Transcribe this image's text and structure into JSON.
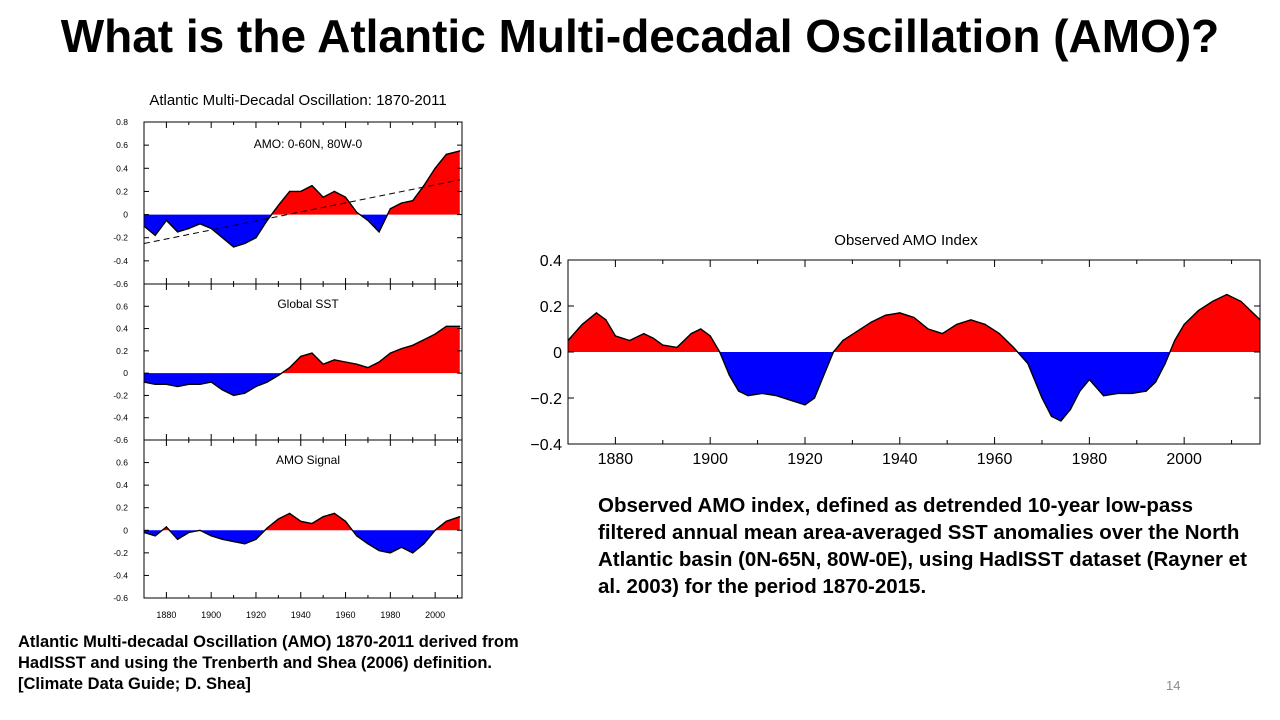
{
  "slide": {
    "title": "What is the Atlantic Multi-decadal Oscillation (AMO)?",
    "caption_left": "Atlantic Multi-decadal Oscillation (AMO) 1870-2011 derived from HadISST and using the Trenberth and Shea (2006) definition. [Climate Data Guide; D. Shea]",
    "caption_right": "Observed AMO index, defined as detrended 10-year low-pass filtered annual mean area-averaged SST anomalies over the North Atlantic basin (0N-65N, 80W-0E), using HadISST dataset (Rayner et al. 2003) for the period 1870-2015.",
    "page_number": "14"
  },
  "colors": {
    "positive": "#ff0000",
    "negative": "#0000ff",
    "line": "#000000"
  },
  "chart_data": [
    {
      "type": "area",
      "title": "Atlantic Multi-Decadal Oscillation: 1870-2011",
      "xlim": [
        1870,
        2012
      ],
      "x_ticks": [
        1880,
        1900,
        1920,
        1940,
        1960,
        1980,
        2000
      ],
      "panels": [
        {
          "label": "AMO: 0-60N, 80W-0",
          "ylim": [
            -0.6,
            0.8
          ],
          "y_ticks": [
            "0.8",
            "0.6",
            "0.4",
            "0.2",
            "0",
            "-0.2",
            "-0.4",
            "-0.6"
          ],
          "trend_line": {
            "x": [
              1870,
              2011
            ],
            "y": [
              -0.25,
              0.3
            ]
          },
          "x": [
            1870,
            1875,
            1880,
            1885,
            1890,
            1895,
            1900,
            1905,
            1910,
            1915,
            1920,
            1925,
            1930,
            1935,
            1940,
            1945,
            1950,
            1955,
            1960,
            1965,
            1970,
            1975,
            1980,
            1985,
            1990,
            1995,
            2000,
            2005,
            2011
          ],
          "values": [
            -0.1,
            -0.18,
            -0.05,
            -0.15,
            -0.12,
            -0.08,
            -0.12,
            -0.2,
            -0.28,
            -0.25,
            -0.2,
            -0.05,
            0.08,
            0.2,
            0.2,
            0.25,
            0.15,
            0.2,
            0.15,
            0.02,
            -0.05,
            -0.15,
            0.05,
            0.1,
            0.12,
            0.25,
            0.4,
            0.52,
            0.55
          ]
        },
        {
          "label": "Global SST",
          "ylim": [
            -0.6,
            0.8
          ],
          "y_ticks": [
            "0.6",
            "0.4",
            "0.2",
            "0",
            "-0.2",
            "-0.4",
            "-0.6"
          ],
          "x": [
            1870,
            1875,
            1880,
            1885,
            1890,
            1895,
            1900,
            1905,
            1910,
            1915,
            1920,
            1925,
            1930,
            1935,
            1940,
            1945,
            1950,
            1955,
            1960,
            1965,
            1970,
            1975,
            1980,
            1985,
            1990,
            1995,
            2000,
            2005,
            2011
          ],
          "values": [
            -0.08,
            -0.1,
            -0.1,
            -0.12,
            -0.1,
            -0.1,
            -0.08,
            -0.15,
            -0.2,
            -0.18,
            -0.12,
            -0.08,
            -0.02,
            0.05,
            0.15,
            0.18,
            0.08,
            0.12,
            0.1,
            0.08,
            0.05,
            0.1,
            0.18,
            0.22,
            0.25,
            0.3,
            0.35,
            0.42,
            0.42
          ]
        },
        {
          "label": "AMO Signal",
          "ylim": [
            -0.6,
            0.8
          ],
          "y_ticks": [
            "0.6",
            "0.4",
            "0.2",
            "0",
            "-0.2",
            "-0.4",
            "-0.6"
          ],
          "x_tick_labels": [
            "1880",
            "1900",
            "1920",
            "1940",
            "1960",
            "1980",
            "2000"
          ],
          "x": [
            1870,
            1875,
            1880,
            1885,
            1890,
            1895,
            1900,
            1905,
            1910,
            1915,
            1920,
            1925,
            1930,
            1935,
            1940,
            1945,
            1950,
            1955,
            1960,
            1965,
            1970,
            1975,
            1980,
            1985,
            1990,
            1995,
            2000,
            2005,
            2011
          ],
          "values": [
            -0.02,
            -0.05,
            0.03,
            -0.08,
            -0.02,
            0.0,
            -0.05,
            -0.08,
            -0.1,
            -0.12,
            -0.08,
            0.02,
            0.1,
            0.15,
            0.08,
            0.06,
            0.12,
            0.15,
            0.08,
            -0.05,
            -0.12,
            -0.18,
            -0.2,
            -0.15,
            -0.2,
            -0.12,
            0.0,
            0.08,
            0.12
          ]
        }
      ]
    },
    {
      "type": "area",
      "title": "Observed AMO Index",
      "xlim": [
        1870,
        2016
      ],
      "ylim": [
        -0.4,
        0.4
      ],
      "x_ticks": [
        "1880",
        "1900",
        "1920",
        "1940",
        "1960",
        "1980",
        "2000"
      ],
      "y_ticks": [
        "0.4",
        "0.2",
        "0",
        "−0.2",
        "−0.4"
      ],
      "x": [
        1870,
        1873,
        1876,
        1878,
        1880,
        1883,
        1886,
        1888,
        1890,
        1893,
        1896,
        1898,
        1900,
        1902,
        1904,
        1906,
        1908,
        1911,
        1914,
        1917,
        1920,
        1922,
        1924,
        1926,
        1928,
        1931,
        1934,
        1937,
        1940,
        1943,
        1946,
        1949,
        1952,
        1955,
        1958,
        1961,
        1964,
        1967,
        1970,
        1972,
        1974,
        1976,
        1978,
        1980,
        1983,
        1986,
        1989,
        1992,
        1994,
        1996,
        1998,
        2000,
        2003,
        2006,
        2009,
        2012,
        2016
      ],
      "values": [
        0.05,
        0.12,
        0.17,
        0.14,
        0.07,
        0.05,
        0.08,
        0.06,
        0.03,
        0.02,
        0.08,
        0.1,
        0.07,
        0.0,
        -0.1,
        -0.17,
        -0.19,
        -0.18,
        -0.19,
        -0.21,
        -0.23,
        -0.2,
        -0.1,
        0.0,
        0.05,
        0.09,
        0.13,
        0.16,
        0.17,
        0.15,
        0.1,
        0.08,
        0.12,
        0.14,
        0.12,
        0.08,
        0.02,
        -0.05,
        -0.2,
        -0.28,
        -0.3,
        -0.25,
        -0.17,
        -0.12,
        -0.19,
        -0.18,
        -0.18,
        -0.17,
        -0.13,
        -0.05,
        0.05,
        0.12,
        0.18,
        0.22,
        0.25,
        0.22,
        0.14
      ]
    }
  ]
}
